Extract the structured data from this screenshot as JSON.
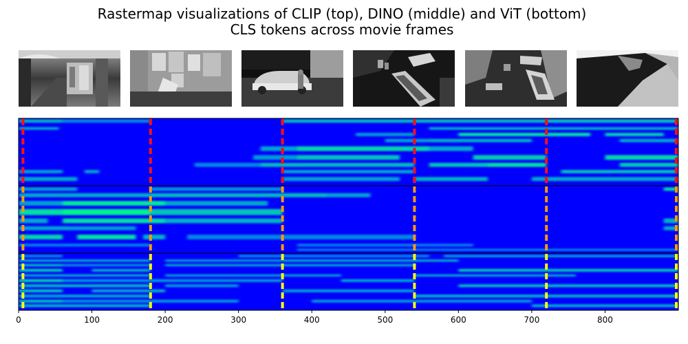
{
  "title": {
    "line1": "Rastermap visualizations of CLIP (top), DINO (middle) and ViT (bottom)",
    "line2": "CLS tokens across movie frames"
  },
  "frames": [
    {
      "name": "frame-thumbnail-1",
      "scene": "arcade walkway with shop stalls"
    },
    {
      "name": "frame-thumbnail-2",
      "scene": "wall with torn posters"
    },
    {
      "name": "frame-thumbnail-3",
      "scene": "night street with parked car and man"
    },
    {
      "name": "frame-thumbnail-4",
      "scene": "overhead view of parked cars"
    },
    {
      "name": "frame-thumbnail-5",
      "scene": "high angle courtyard with cars"
    },
    {
      "name": "frame-thumbnail-6",
      "scene": "rooftop corner from above"
    }
  ],
  "colors": {
    "background": "#0000ff",
    "active": "#00ff88",
    "mid": "#00a0ff",
    "clip_marker": "#ff1010",
    "dino_marker": "#ff9a00",
    "vit_marker": "#ffff00",
    "border": "#000000"
  },
  "chart_data": {
    "type": "heatmap",
    "title": "Rastermap visualizations of CLIP (top), DINO (middle) and ViT (bottom) CLS tokens across movie frames",
    "colormap": "blue-to-green",
    "xlim": [
      0,
      900
    ],
    "x_ticks": [
      0,
      100,
      200,
      300,
      400,
      500,
      600,
      700,
      800
    ],
    "markers": [
      6,
      180,
      360,
      540,
      720,
      900
    ],
    "panels": [
      {
        "name": "CLIP",
        "marker_color": "#ff1010",
        "bands": [
          {
            "pos": 0.04,
            "h": 0.05,
            "segments": [
              [
                0,
                60,
                0.6
              ],
              [
                60,
                180,
                0.35
              ],
              [
                360,
                720,
                0.65
              ],
              [
                720,
                900,
                0.7
              ]
            ]
          },
          {
            "pos": 0.15,
            "h": 0.04,
            "segments": [
              [
                0,
                55,
                0.55
              ],
              [
                560,
                900,
                0.6
              ]
            ]
          },
          {
            "pos": 0.24,
            "h": 0.05,
            "segments": [
              [
                460,
                540,
                0.45
              ],
              [
                600,
                780,
                0.85
              ],
              [
                800,
                880,
                0.75
              ]
            ]
          },
          {
            "pos": 0.33,
            "h": 0.05,
            "segments": [
              [
                500,
                560,
                0.5
              ],
              [
                560,
                700,
                0.6
              ],
              [
                820,
                900,
                0.55
              ]
            ]
          },
          {
            "pos": 0.45,
            "h": 0.07,
            "segments": [
              [
                330,
                380,
                0.5
              ],
              [
                380,
                560,
                0.8
              ],
              [
                560,
                620,
                0.55
              ]
            ]
          },
          {
            "pos": 0.58,
            "h": 0.07,
            "segments": [
              [
                320,
                380,
                0.45
              ],
              [
                380,
                520,
                0.7
              ],
              [
                620,
                720,
                0.75
              ],
              [
                800,
                900,
                0.8
              ]
            ]
          },
          {
            "pos": 0.69,
            "h": 0.06,
            "segments": [
              [
                240,
                330,
                0.35
              ],
              [
                330,
                540,
                0.65
              ],
              [
                560,
                640,
                0.7
              ],
              [
                640,
                720,
                0.85
              ],
              [
                820,
                900,
                0.75
              ]
            ]
          },
          {
            "pos": 0.79,
            "h": 0.05,
            "segments": [
              [
                0,
                60,
                0.5
              ],
              [
                90,
                110,
                0.5
              ],
              [
                360,
                540,
                0.55
              ],
              [
                740,
                900,
                0.7
              ]
            ]
          },
          {
            "pos": 0.9,
            "h": 0.06,
            "segments": [
              [
                0,
                80,
                0.55
              ],
              [
                360,
                520,
                0.5
              ],
              [
                540,
                640,
                0.6
              ],
              [
                700,
                900,
                0.55
              ]
            ]
          }
        ]
      },
      {
        "name": "DINO",
        "marker_color": "#ff9a00",
        "bands": [
          {
            "pos": 0.05,
            "h": 0.05,
            "segments": [
              [
                0,
                80,
                0.5
              ],
              [
                180,
                360,
                0.45
              ],
              [
                880,
                900,
                0.8
              ]
            ]
          },
          {
            "pos": 0.14,
            "h": 0.06,
            "segments": [
              [
                0,
                180,
                0.55
              ],
              [
                180,
                420,
                0.65
              ],
              [
                420,
                480,
                0.5
              ]
            ]
          },
          {
            "pos": 0.26,
            "h": 0.07,
            "segments": [
              [
                0,
                60,
                0.5
              ],
              [
                60,
                200,
                0.9
              ],
              [
                200,
                340,
                0.55
              ]
            ]
          },
          {
            "pos": 0.39,
            "h": 0.09,
            "segments": [
              [
                0,
                60,
                0.85
              ],
              [
                60,
                180,
                0.95
              ],
              [
                180,
                360,
                0.7
              ]
            ]
          },
          {
            "pos": 0.52,
            "h": 0.07,
            "segments": [
              [
                0,
                40,
                0.55
              ],
              [
                60,
                200,
                0.85
              ],
              [
                200,
                360,
                0.6
              ],
              [
                880,
                900,
                0.6
              ]
            ]
          },
          {
            "pos": 0.63,
            "h": 0.06,
            "segments": [
              [
                0,
                70,
                0.5
              ],
              [
                70,
                160,
                0.45
              ],
              [
                880,
                900,
                0.55
              ]
            ]
          },
          {
            "pos": 0.76,
            "h": 0.07,
            "segments": [
              [
                0,
                60,
                0.8
              ],
              [
                80,
                160,
                0.85
              ],
              [
                170,
                200,
                0.6
              ],
              [
                230,
                540,
                0.35
              ]
            ]
          },
          {
            "pos": 0.88,
            "h": 0.04,
            "segments": [
              [
                0,
                180,
                0.35
              ],
              [
                380,
                620,
                0.3
              ]
            ]
          },
          {
            "pos": 0.95,
            "h": 0.03,
            "segments": [
              [
                380,
                900,
                0.4
              ]
            ]
          }
        ]
      },
      {
        "name": "ViT",
        "marker_color": "#ffff00",
        "bands": [
          {
            "pos": 0.05,
            "h": 0.04,
            "segments": [
              [
                0,
                60,
                0.45
              ],
              [
                300,
                560,
                0.45
              ],
              [
                580,
                900,
                0.55
              ]
            ]
          },
          {
            "pos": 0.13,
            "h": 0.04,
            "segments": [
              [
                0,
                180,
                0.6
              ],
              [
                200,
                360,
                0.5
              ],
              [
                360,
                600,
                0.6
              ]
            ]
          },
          {
            "pos": 0.21,
            "h": 0.04,
            "segments": [
              [
                0,
                60,
                0.7
              ],
              [
                60,
                180,
                0.45
              ],
              [
                200,
                540,
                0.55
              ]
            ]
          },
          {
            "pos": 0.3,
            "h": 0.05,
            "segments": [
              [
                0,
                60,
                0.75
              ],
              [
                100,
                180,
                0.55
              ],
              [
                600,
                900,
                0.7
              ]
            ]
          },
          {
            "pos": 0.39,
            "h": 0.04,
            "segments": [
              [
                0,
                180,
                0.6
              ],
              [
                200,
                440,
                0.5
              ],
              [
                540,
                760,
                0.55
              ]
            ]
          },
          {
            "pos": 0.48,
            "h": 0.05,
            "segments": [
              [
                0,
                60,
                0.8
              ],
              [
                60,
                360,
                0.45
              ],
              [
                440,
                540,
                0.5
              ]
            ]
          },
          {
            "pos": 0.57,
            "h": 0.05,
            "segments": [
              [
                0,
                180,
                0.65
              ],
              [
                200,
                300,
                0.45
              ],
              [
                600,
                900,
                0.65
              ]
            ]
          },
          {
            "pos": 0.66,
            "h": 0.05,
            "segments": [
              [
                0,
                60,
                0.75
              ],
              [
                100,
                200,
                0.6
              ],
              [
                360,
                540,
                0.5
              ]
            ]
          },
          {
            "pos": 0.75,
            "h": 0.05,
            "segments": [
              [
                0,
                180,
                0.55
              ],
              [
                540,
                900,
                0.6
              ]
            ]
          },
          {
            "pos": 0.84,
            "h": 0.05,
            "segments": [
              [
                0,
                60,
                0.7
              ],
              [
                60,
                300,
                0.45
              ],
              [
                400,
                700,
                0.45
              ]
            ]
          },
          {
            "pos": 0.92,
            "h": 0.05,
            "segments": [
              [
                0,
                180,
                0.6
              ],
              [
                700,
                900,
                0.55
              ]
            ]
          }
        ]
      }
    ]
  }
}
